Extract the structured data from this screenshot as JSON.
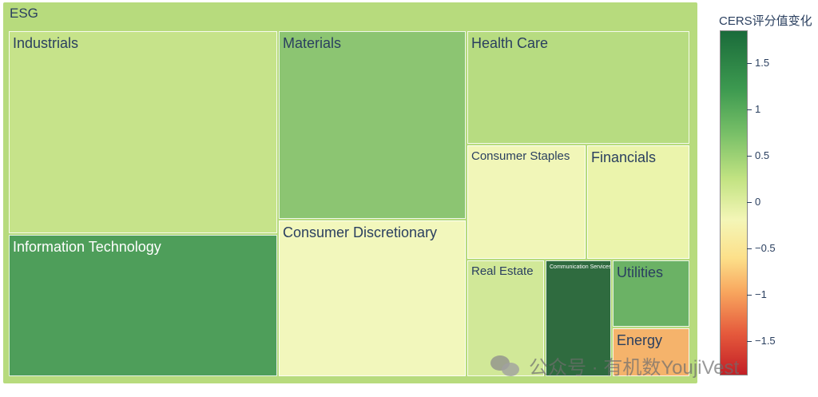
{
  "chart_data": {
    "type": "treemap",
    "root": "ESG",
    "colorbar_title": "CERS评分值变化",
    "colorbar_ticks": [
      "1.5",
      "1",
      "0.5",
      "0",
      "−0.5",
      "−1",
      "−1.5"
    ],
    "colorbar_range": [
      -1.85,
      1.85
    ],
    "colorscale": "RdYlGn",
    "sectors": [
      {
        "label": "Industrials",
        "color": "#c6e38a",
        "color_value": 0.6
      },
      {
        "label": "Information Technology",
        "color": "#4e9e5a",
        "color_value": 1.6
      },
      {
        "label": "Materials",
        "color": "#8cc572",
        "color_value": 1.1
      },
      {
        "label": "Consumer Discretionary",
        "color": "#f2f7bc",
        "color_value": 0.15
      },
      {
        "label": "Health Care",
        "color": "#b7dc81",
        "color_value": 0.75
      },
      {
        "label": "Consumer Staples",
        "color": "#f1f6b8",
        "color_value": 0.2
      },
      {
        "label": "Financials",
        "color": "#ebf4ac",
        "color_value": 0.25
      },
      {
        "label": "Real Estate",
        "color": "#d1e898",
        "color_value": 0.5
      },
      {
        "label": "Communication Services",
        "color": "#2f6b3f",
        "color_value": 1.85
      },
      {
        "label": "Utilities",
        "color": "#6bb265",
        "color_value": 1.3
      },
      {
        "label": "Energy",
        "color": "#f5b36b",
        "color_value": -0.5
      }
    ]
  },
  "watermark": {
    "text": "公众号 · 有机数YoujiVest",
    "icon": "wechat-icon"
  }
}
